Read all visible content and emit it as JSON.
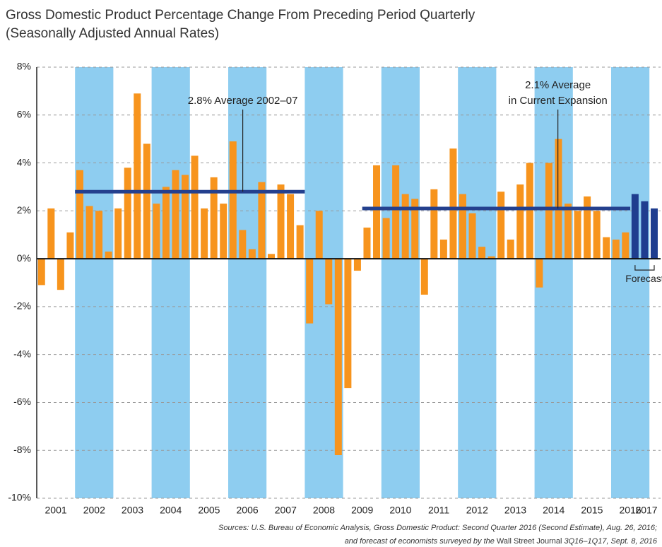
{
  "chart_data": {
    "type": "bar",
    "title": [
      "Gross Domestic Product Percentage Change From Preceding Period Quarterly",
      "(Seasonally Adjusted Annual Rates)"
    ],
    "years": [
      "2001",
      "2002",
      "2003",
      "2004",
      "2005",
      "2006",
      "2007",
      "2008",
      "2009",
      "2010",
      "2011",
      "2012",
      "2013",
      "2014",
      "2015",
      "2016",
      "2017"
    ],
    "values": [
      -1.1,
      2.1,
      -1.3,
      1.1,
      3.7,
      2.2,
      2.0,
      0.3,
      2.1,
      3.8,
      6.9,
      4.8,
      2.3,
      3.0,
      3.7,
      3.5,
      4.3,
      2.1,
      3.4,
      2.3,
      4.9,
      1.2,
      0.4,
      3.2,
      0.2,
      3.1,
      2.7,
      1.4,
      -2.7,
      2.0,
      -1.9,
      -8.2,
      -5.4,
      -0.5,
      1.3,
      3.9,
      1.7,
      3.9,
      2.7,
      2.5,
      -1.5,
      2.9,
      0.8,
      4.6,
      2.7,
      1.9,
      0.5,
      0.1,
      2.8,
      0.8,
      3.1,
      4.0,
      -1.2,
      4.0,
      5.0,
      2.3,
      2.0,
      2.6,
      2.0,
      0.9,
      0.8,
      1.1
    ],
    "color": "#f7941d",
    "forecast": {
      "label": "Forecast",
      "color": "#1f3d8f",
      "values": [
        2.7,
        2.4,
        2.1
      ]
    },
    "reference_lines": [
      {
        "label": [
          "2.8% Average 2002–07"
        ],
        "value": 2.8,
        "span": [
          4,
          28
        ],
        "color": "#24408e"
      },
      {
        "label": [
          "2.1% Average",
          "in Current Expansion"
        ],
        "value": 2.1,
        "span": [
          34,
          62
        ],
        "color": "#24408e"
      }
    ],
    "shade_alternate_years": true,
    "shade_color": "#8ecdf0",
    "ylim": [
      -10,
      8
    ],
    "yticks": [
      {
        "value": -10,
        "label": "-10%"
      },
      {
        "value": -8,
        "label": "-8%"
      },
      {
        "value": -6,
        "label": "-6%"
      },
      {
        "value": -4,
        "label": "-4%"
      },
      {
        "value": -2,
        "label": "-2%"
      },
      {
        "value": 0,
        "label": "0%"
      },
      {
        "value": 2,
        "label": "2%"
      },
      {
        "value": 4,
        "label": "4%"
      },
      {
        "value": 6,
        "label": "6%"
      },
      {
        "value": 8,
        "label": "8%"
      }
    ],
    "grid": true,
    "sources": [
      "Sources: U.S. Bureau of Economic Analysis, Gross Domestic Product: Second Quarter 2016 (Second Estimate), Aug. 26, 2016;",
      "and forecast of economists surveyed by the ",
      "Wall Street Journal",
      " 3Q16–1Q17, Sept. 8, 2016"
    ]
  }
}
